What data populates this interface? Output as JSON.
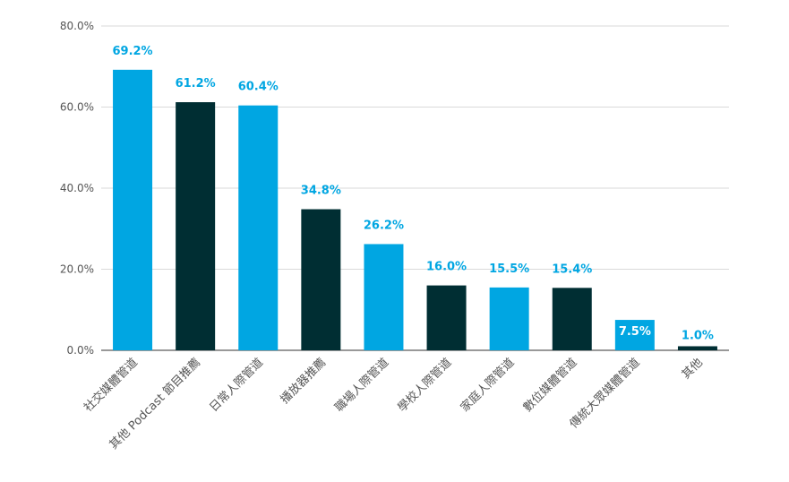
{
  "colors": {
    "primary": "#00A6E2",
    "secondary": "#002E33",
    "grid": "#d9d9d9",
    "text": "#555555"
  },
  "chart_data": {
    "type": "bar",
    "title": "",
    "xlabel": "",
    "ylabel": "",
    "ylim": [
      0,
      80
    ],
    "yticks": [
      "0.0%",
      "20.0%",
      "40.0%",
      "60.0%",
      "80.0%"
    ],
    "grid": true,
    "legend": "none",
    "categories": [
      "社交媒體管道",
      "其他 Podcast 節目推薦",
      "日常人際管道",
      "播放器推薦",
      "職場人際管道",
      "學校人際管道",
      "家庭人際管道",
      "數位媒體管道",
      "傳統大眾媒體管道",
      "其他"
    ],
    "values": [
      69.2,
      61.2,
      60.4,
      34.8,
      26.2,
      16.0,
      15.5,
      15.4,
      7.5,
      1.0
    ],
    "labels": [
      "69.2%",
      "61.2%",
      "60.4%",
      "34.8%",
      "26.2%",
      "16.0%",
      "15.5%",
      "15.4%",
      "7.5%",
      "1.0%"
    ],
    "bar_colors": [
      "#00A6E2",
      "#002E33",
      "#00A6E2",
      "#002E33",
      "#00A6E2",
      "#002E33",
      "#00A6E2",
      "#002E33",
      "#00A6E2",
      "#002E33"
    ],
    "label_colors": [
      "#00A6E2",
      "#00A6E2",
      "#00A6E2",
      "#00A6E2",
      "#00A6E2",
      "#00A6E2",
      "#00A6E2",
      "#00A6E2",
      "#ffffff",
      "#00A6E2"
    ]
  }
}
